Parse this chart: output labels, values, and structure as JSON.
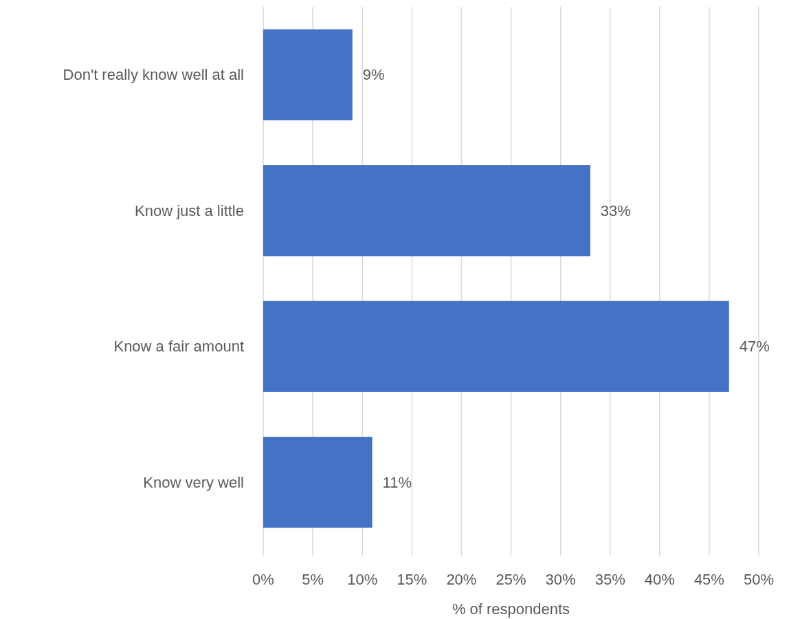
{
  "chart_data": {
    "type": "bar",
    "orientation": "horizontal",
    "xlabel": "% of respondents",
    "categories": [
      "Don't really know well at all",
      "Know just a little",
      "Know a fair amount",
      "Know very well"
    ],
    "values": [
      9,
      33,
      47,
      11
    ],
    "color": "#4472c4",
    "value_labels": [
      "9%",
      "33%",
      "47%",
      "11%"
    ],
    "xlim": [
      0,
      50
    ],
    "xticks": [
      {
        "value": 0,
        "label": "0%"
      },
      {
        "value": 5,
        "label": "5%"
      },
      {
        "value": 10,
        "label": "10%"
      },
      {
        "value": 15,
        "label": "15%"
      },
      {
        "value": 20,
        "label": "20%"
      },
      {
        "value": 25,
        "label": "25%"
      },
      {
        "value": 30,
        "label": "30%"
      },
      {
        "value": 35,
        "label": "35%"
      },
      {
        "value": 40,
        "label": "40%"
      },
      {
        "value": 45,
        "label": "45%"
      },
      {
        "value": 50,
        "label": "50%"
      }
    ],
    "grid": "x"
  }
}
